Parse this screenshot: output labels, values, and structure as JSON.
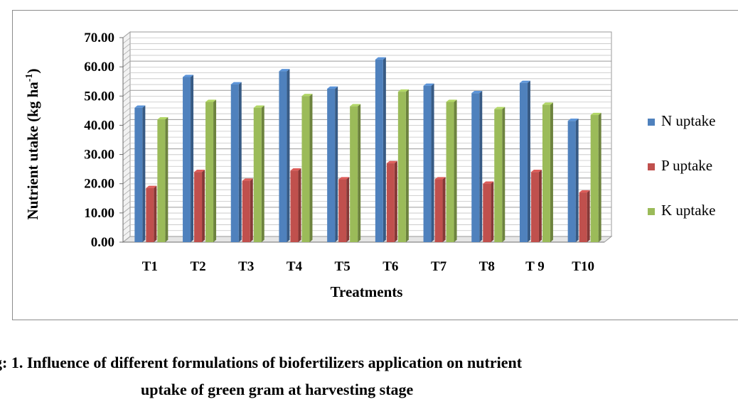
{
  "chart_data": {
    "type": "bar",
    "categories": [
      "T1",
      "T2",
      "T3",
      "T4",
      "T5",
      "T6",
      "T7",
      "T8",
      "T 9",
      "T10"
    ],
    "series": [
      {
        "name": "N uptake",
        "color": "#4f81bd",
        "values": [
          46.0,
          56.5,
          54.0,
          58.5,
          52.5,
          62.5,
          53.5,
          51.0,
          54.5,
          41.5
        ]
      },
      {
        "name": "P uptake",
        "color": "#c0504d",
        "values": [
          18.5,
          24.0,
          21.0,
          24.5,
          21.5,
          27.0,
          21.5,
          20.0,
          24.0,
          17.0
        ]
      },
      {
        "name": "K uptake",
        "color": "#9bbb59",
        "values": [
          42.0,
          48.0,
          46.0,
          50.0,
          46.5,
          51.5,
          48.0,
          45.5,
          47.0,
          43.5
        ]
      }
    ],
    "yticks": [
      "0.00",
      "10.00",
      "20.00",
      "30.00",
      "40.00",
      "50.00",
      "60.00",
      "70.00"
    ],
    "ylim": [
      0,
      70
    ],
    "xlabel": "Treatments",
    "ylabel_main": "Nutrient  utake (kg ha",
    "ylabel_sup": "-1",
    "ylabel_close": ")",
    "grid": true,
    "legend_position": "right"
  },
  "caption": {
    "line1": "g: 1. Influence of different formulations of biofertilizers application on nutrient",
    "line2": "uptake of green gram at harvesting stage"
  }
}
